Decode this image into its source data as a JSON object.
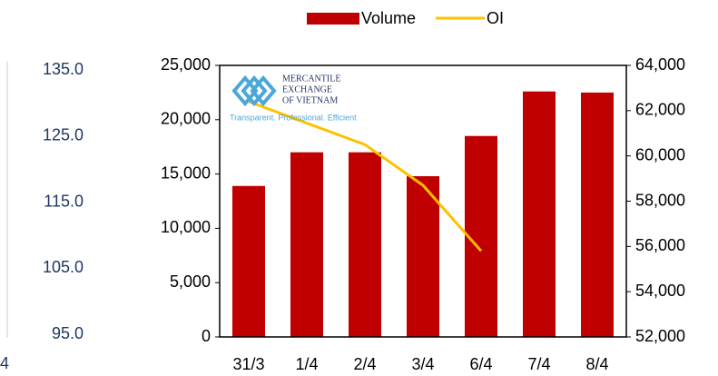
{
  "chart_data": [
    {
      "type": "bar",
      "categories": [
        "31/3",
        "1/4",
        "2/4",
        "3/4",
        "6/4",
        "7/4",
        "8/4"
      ],
      "series": [
        {
          "name": "Volume",
          "color": "#c00000",
          "values": [
            13900,
            17000,
            17000,
            14800,
            18500,
            22600,
            22500
          ]
        },
        {
          "name": "OI",
          "color": "#ffc000",
          "type": "line",
          "axis": "y2",
          "values": [
            62400,
            61450,
            60500,
            58700,
            55800,
            null,
            null
          ]
        }
      ],
      "ylim": [
        0,
        25000
      ],
      "yticks": [
        0,
        {
          "value": 5000,
          "label": "5,000"
        },
        {
          "value": 10000,
          "label": "10,000"
        },
        {
          "value": 15000,
          "label": "15,000"
        },
        {
          "value": 20000,
          "label": "20,000"
        },
        {
          "value": 25000,
          "label": "25,000"
        }
      ],
      "y2lim": [
        52000,
        64000
      ],
      "y2ticks": [
        {
          "value": 52000,
          "label": "52,000"
        },
        {
          "value": 54000,
          "label": "54,000"
        },
        {
          "value": 56000,
          "label": "56,000"
        },
        {
          "value": 58000,
          "label": "58,000"
        },
        {
          "value": 60000,
          "label": "60,000"
        },
        {
          "value": 62000,
          "label": "62,000"
        },
        {
          "value": 64000,
          "label": "64,000"
        }
      ],
      "legend": "top",
      "logo": {
        "lines": [
          "MERCANTILE",
          "EXCHANGE",
          "OF VIETNAM"
        ],
        "tagline": "Transparent. Professional. Efficient"
      }
    },
    {
      "type": "line",
      "categories": [
        "4"
      ],
      "ylim": [
        95,
        135
      ],
      "yticks": [
        {
          "value": 95,
          "label": "95.0"
        },
        {
          "value": 105,
          "label": "105.0"
        },
        {
          "value": 115,
          "label": "115.0"
        },
        {
          "value": 125,
          "label": "125.0"
        },
        {
          "value": 135,
          "label": "135.0"
        }
      ]
    }
  ]
}
